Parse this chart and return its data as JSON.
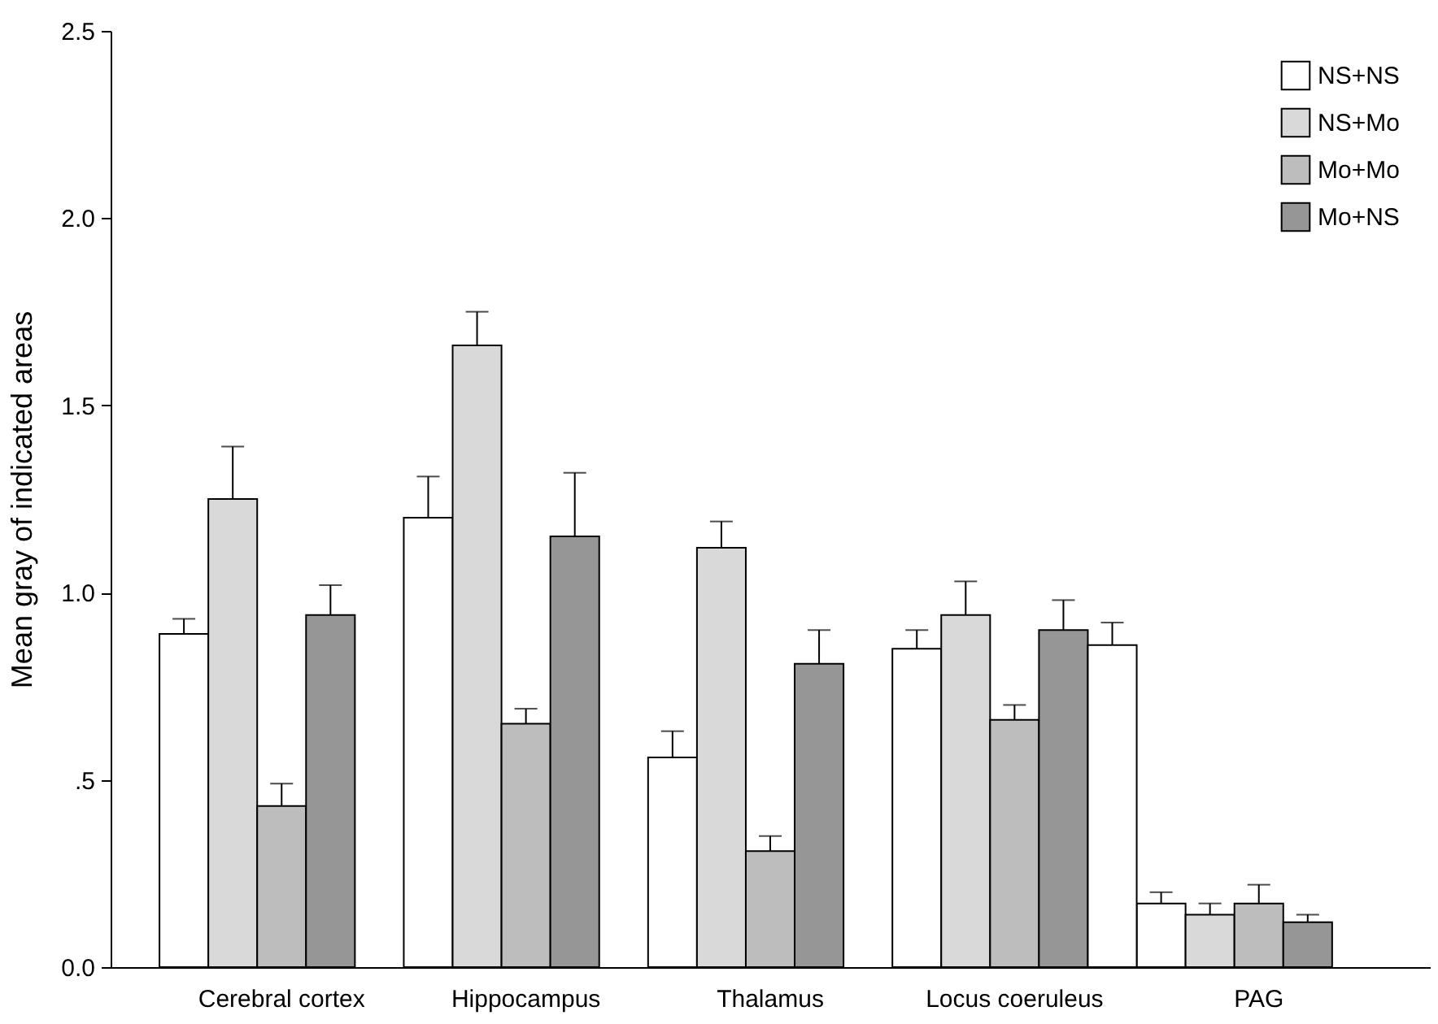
{
  "chart_data": {
    "type": "bar",
    "ylabel": "Mean gray of indicated areas",
    "categories": [
      "Cerebral cortex",
      "Hippocampus",
      "Thalamus",
      "Locus coeruleus",
      "PAG"
    ],
    "series": [
      {
        "name": "NS+NS",
        "color": "#ffffff",
        "values": [
          0.89,
          1.2,
          0.56,
          0.85,
          0.17
        ],
        "errors": [
          [
            0.89,
            0.93
          ],
          [
            1.2,
            1.31
          ],
          [
            0.56,
            0.63
          ],
          [
            0.85,
            0.9
          ],
          [
            0.17,
            0.2
          ]
        ]
      },
      {
        "name": "NS+Mo",
        "color": "#d9d9d9",
        "values": [
          1.25,
          1.66,
          1.12,
          0.94,
          0.14
        ],
        "errors": [
          [
            1.25,
            1.39
          ],
          [
            1.66,
            1.75
          ],
          [
            1.12,
            1.19
          ],
          [
            0.94,
            1.03
          ],
          [
            0.14,
            0.17
          ]
        ]
      },
      {
        "name": "Mo+Mo",
        "color": "#bdbdbd",
        "values": [
          0.43,
          0.65,
          0.31,
          0.66,
          0.17
        ],
        "errors": [
          [
            0.43,
            0.49
          ],
          [
            0.65,
            0.69
          ],
          [
            0.31,
            0.35
          ],
          [
            0.66,
            0.7
          ],
          [
            0.17,
            0.22
          ]
        ]
      },
      {
        "name": "Mo+NS",
        "color": "#969696",
        "values": [
          0.94,
          1.15,
          0.81,
          0.9,
          0.12
        ],
        "errors": [
          [
            0.94,
            1.02
          ],
          [
            1.15,
            1.32
          ],
          [
            0.81,
            0.9
          ],
          [
            0.9,
            0.98
          ],
          [
            0.12,
            0.14
          ]
        ]
      },
      {
        "color": "#ffffff",
        "values": [
          null,
          null,
          null,
          0.86,
          null
        ],
        "errors": [
          null,
          null,
          null,
          [
            0.86,
            0.92
          ],
          null
        ]
      }
    ],
    "ylim": [
      0,
      2.5
    ],
    "yticks": [
      {
        "value": 0,
        "label": "0.0"
      },
      {
        "value": 0.5,
        "label": ".5"
      },
      {
        "value": 1,
        "label": "1.0"
      },
      {
        "value": 1.5,
        "label": "1.5"
      },
      {
        "value": 2,
        "label": "2.0"
      },
      2.5
    ],
    "legend": "top right",
    "grid": false
  }
}
